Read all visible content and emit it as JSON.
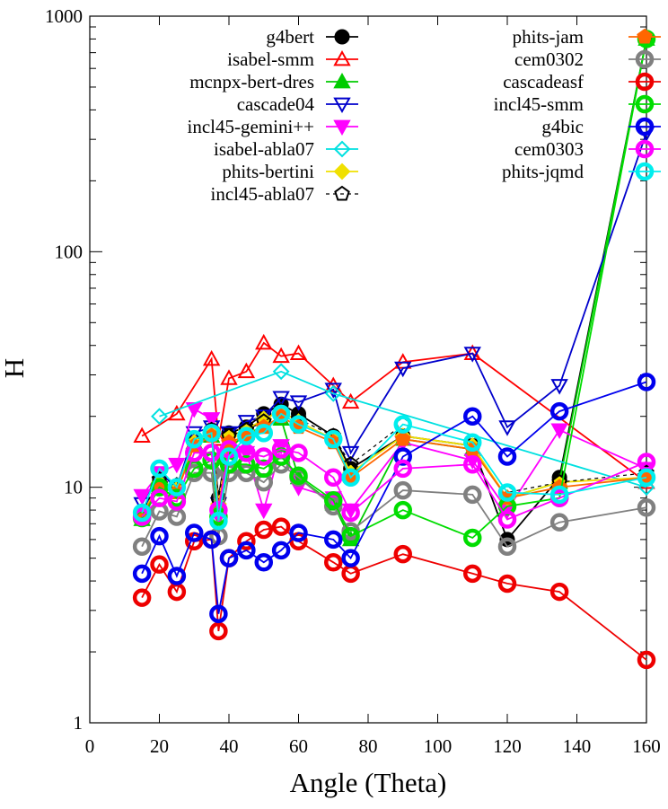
{
  "chart_data": {
    "type": "line",
    "title": "",
    "xlabel": "Angle (Theta)",
    "ylabel": "H",
    "xlim": [
      0,
      160
    ],
    "ylim": [
      1,
      1000
    ],
    "y_scale": "log",
    "x_ticks": [
      0,
      20,
      40,
      60,
      80,
      100,
      120,
      140,
      160
    ],
    "y_ticks": [
      1,
      10,
      100,
      1000
    ],
    "x_tick_labels": [
      "0",
      "20",
      "40",
      "60",
      "80",
      "100",
      "120",
      "140",
      "160"
    ],
    "y_tick_labels": [
      "1",
      "10",
      "100",
      "1000"
    ],
    "grid": false,
    "legend_position": "top",
    "series": [
      {
        "name": "g4bert",
        "color": "#000000",
        "marker": "filled-circle",
        "dashed": false,
        "x": [
          15,
          20,
          25,
          30,
          35,
          37,
          40,
          45,
          50,
          55,
          60,
          70,
          75,
          90,
          110,
          120,
          135,
          160
        ],
        "y": [
          7.6,
          10.5,
          9.8,
          15.5,
          17.5,
          9.0,
          17.0,
          18.0,
          20.5,
          22.5,
          20.5,
          16.5,
          12.0,
          16.5,
          15.0,
          6.0,
          11.0,
          800
        ]
      },
      {
        "name": "isabel-smm",
        "color": "#ff0000",
        "marker": "triangle-up",
        "dashed": false,
        "x": [
          15,
          25,
          35,
          37,
          40,
          45,
          50,
          55,
          60,
          70,
          75,
          90,
          110,
          160
        ],
        "y": [
          16.5,
          20.5,
          35,
          16.0,
          29,
          31,
          41,
          36,
          37,
          27,
          23,
          34,
          37,
          10.5
        ]
      },
      {
        "name": "mcnpx-bert-dres",
        "color": "#00cc00",
        "marker": "filled-triangle-up",
        "dashed": false,
        "x": [
          15,
          20,
          25,
          30,
          35,
          37,
          40,
          45,
          50,
          55,
          60,
          70,
          75,
          90,
          110,
          120,
          135,
          160
        ],
        "y": [
          7.3,
          10.0,
          9.5,
          15.5,
          16.5,
          8.5,
          14.5,
          17.0,
          18.0,
          19.5,
          11.0,
          8.5,
          6.0,
          16.0,
          14.5,
          9.0,
          10.5,
          800
        ]
      },
      {
        "name": "cascade04",
        "color": "#0000cc",
        "marker": "triangle-down",
        "dashed": false,
        "x": [
          15,
          20,
          25,
          30,
          35,
          37,
          40,
          45,
          50,
          55,
          60,
          70,
          75,
          90,
          110,
          120,
          135,
          160
        ],
        "y": [
          8.5,
          11.5,
          10.0,
          17.0,
          18.0,
          8.5,
          17.0,
          19.0,
          20.0,
          24.0,
          23.0,
          26.0,
          14.0,
          32,
          37,
          18.0,
          27.0,
          320
        ]
      },
      {
        "name": "incl45-gemini++",
        "color": "#ff00ff",
        "marker": "filled-triangle-down",
        "dashed": false,
        "x": [
          15,
          20,
          25,
          30,
          35,
          37,
          40,
          45,
          50,
          55,
          60,
          70,
          75,
          90,
          110,
          120,
          135,
          160
        ],
        "y": [
          9.2,
          11.5,
          12.5,
          21.5,
          19.5,
          7.5,
          16.0,
          14.0,
          8.0,
          15.0,
          10.0,
          9.0,
          8.0,
          15.5,
          13.0,
          8.0,
          17.5,
          12.0
        ]
      },
      {
        "name": "isabel-abla07",
        "color": "#00e0e0",
        "marker": "diamond",
        "dashed": false,
        "x": [
          20,
          55,
          70,
          160
        ],
        "y": [
          20.0,
          31.0,
          25.0,
          10.0
        ]
      },
      {
        "name": "phits-bertini",
        "color": "#f0e000",
        "marker": "filled-diamond",
        "dashed": false,
        "x": [
          15,
          20,
          25,
          30,
          35,
          37,
          40,
          45,
          50,
          55,
          60,
          70,
          75,
          90,
          110,
          120,
          135,
          160
        ],
        "y": [
          7.6,
          10.5,
          9.8,
          15.5,
          17.0,
          8.5,
          16.5,
          17.5,
          19.5,
          21.0,
          19.0,
          16.0,
          11.5,
          16.5,
          15.0,
          9.0,
          10.5,
          11.0
        ]
      },
      {
        "name": "incl45-abla07",
        "color": "#000000",
        "marker": "pentagon",
        "dashed": true,
        "x": [
          15,
          20,
          25,
          30,
          35,
          37,
          40,
          45,
          50,
          55,
          60,
          70,
          75,
          90,
          110,
          120,
          135,
          160
        ],
        "y": [
          7.8,
          10.8,
          10.2,
          16.0,
          17.5,
          8.8,
          16.5,
          17.5,
          19.0,
          21.0,
          19.5,
          16.5,
          12.5,
          18.5,
          15.5,
          9.5,
          10.5,
          11.5
        ]
      },
      {
        "name": "phits-jam",
        "color": "#ff6600",
        "marker": "filled-pentagon",
        "dashed": false,
        "x": [
          15,
          20,
          25,
          30,
          35,
          37,
          40,
          45,
          50,
          55,
          60,
          70,
          75,
          90,
          110,
          120,
          135,
          160
        ],
        "y": [
          7.6,
          10.0,
          9.5,
          15.0,
          16.5,
          8.2,
          15.5,
          16.5,
          18.0,
          20.0,
          18.0,
          15.5,
          11.0,
          16.0,
          14.5,
          9.0,
          10.0,
          11.0
        ]
      },
      {
        "name": "cem0302",
        "color": "#808080",
        "marker": "ring",
        "dashed": false,
        "x": [
          15,
          20,
          25,
          30,
          35,
          37,
          40,
          45,
          50,
          55,
          60,
          70,
          75,
          90,
          110,
          120,
          135,
          160
        ],
        "y": [
          5.6,
          7.9,
          7.5,
          11.5,
          11.5,
          6.2,
          11.5,
          11.5,
          10.5,
          12.5,
          11.0,
          8.3,
          6.5,
          9.7,
          9.3,
          5.6,
          7.1,
          8.2
        ]
      },
      {
        "name": "cascadeasf",
        "color": "#ee0000",
        "marker": "ring",
        "dashed": false,
        "x": [
          15,
          20,
          25,
          30,
          35,
          37,
          40,
          45,
          50,
          55,
          60,
          70,
          75,
          90,
          110,
          120,
          135,
          160
        ],
        "y": [
          3.4,
          4.7,
          3.6,
          5.9,
          6.0,
          2.45,
          5.0,
          5.9,
          6.6,
          6.8,
          5.9,
          4.8,
          4.3,
          5.2,
          4.3,
          3.9,
          3.6,
          1.85
        ]
      },
      {
        "name": "incl45-smm",
        "color": "#00dd00",
        "marker": "ring",
        "dashed": false,
        "x": [
          15,
          20,
          25,
          30,
          35,
          37,
          40,
          45,
          50,
          55,
          60,
          70,
          75,
          90,
          110,
          120,
          135,
          160
        ],
        "y": [
          7.4,
          10.0,
          9.0,
          12.0,
          13.0,
          7.5,
          12.5,
          12.5,
          12.0,
          13.5,
          11.2,
          8.8,
          6.2,
          8.0,
          6.1,
          8.3,
          9.0,
          800
        ]
      },
      {
        "name": "g4bic",
        "color": "#0000ee",
        "marker": "ring",
        "dashed": false,
        "x": [
          15,
          20,
          25,
          30,
          35,
          37,
          40,
          45,
          50,
          55,
          60,
          70,
          75,
          90,
          110,
          120,
          135,
          160
        ],
        "y": [
          4.3,
          6.2,
          4.2,
          6.4,
          6.0,
          2.9,
          5.0,
          5.4,
          4.8,
          5.4,
          6.4,
          6.0,
          5.0,
          13.5,
          20.0,
          13.5,
          21.0,
          28.0
        ]
      },
      {
        "name": "cem0303",
        "color": "#ff00ff",
        "marker": "ring",
        "dashed": false,
        "x": [
          15,
          20,
          25,
          30,
          35,
          37,
          40,
          45,
          50,
          55,
          60,
          70,
          75,
          90,
          110,
          120,
          135,
          160
        ],
        "y": [
          7.5,
          9.0,
          8.7,
          14.0,
          14.0,
          8.0,
          14.5,
          14.0,
          13.5,
          14.5,
          14.0,
          11.0,
          7.8,
          12.0,
          12.5,
          7.3,
          9.0,
          12.8
        ]
      },
      {
        "name": "phits-jqmd",
        "color": "#00eeee",
        "marker": "ring",
        "dashed": false,
        "x": [
          15,
          20,
          25,
          30,
          35,
          37,
          40,
          45,
          50,
          55,
          60,
          70,
          75,
          90,
          110,
          120,
          135,
          160
        ],
        "y": [
          7.8,
          12.0,
          10.0,
          16.0,
          17.0,
          7.2,
          13.5,
          16.5,
          17.0,
          20.5,
          18.5,
          16.0,
          11.0,
          18.5,
          15.5,
          9.5,
          9.3,
          11.0
        ]
      }
    ]
  }
}
